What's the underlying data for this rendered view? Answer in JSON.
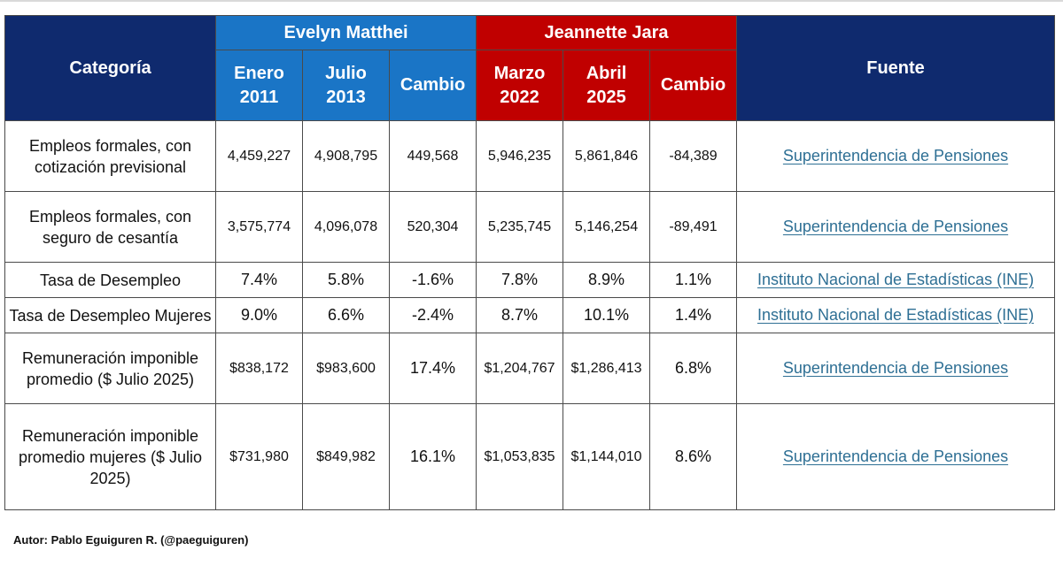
{
  "header": {
    "categoria": "Categoría",
    "fuente": "Fuente",
    "groups": [
      {
        "name": "Evelyn Matthei",
        "color": "#1a75c6",
        "cols": [
          {
            "line1": "Enero",
            "line2": "2011"
          },
          {
            "line1": "Julio",
            "line2": "2013"
          },
          {
            "line1": "Cambio",
            "line2": ""
          }
        ]
      },
      {
        "name": "Jeannette Jara",
        "color": "#c00000",
        "cols": [
          {
            "line1": "Marzo",
            "line2": "2022"
          },
          {
            "line1": "Abril",
            "line2": "2025"
          },
          {
            "line1": "Cambio",
            "line2": ""
          }
        ]
      }
    ],
    "header_color": "#0f2a6e"
  },
  "rows": [
    {
      "categoria": "Empleos formales, con cotización previsional",
      "values": [
        "4,459,227",
        "4,908,795",
        "449,568",
        "5,946,235",
        "5,861,846",
        "-84,389"
      ],
      "fuente": "Superintendencia de Pensiones"
    },
    {
      "categoria": "Empleos formales, con seguro de cesantía",
      "values": [
        "3,575,774",
        "4,096,078",
        "520,304",
        "5,235,745",
        "5,146,254",
        "-89,491"
      ],
      "fuente": "Superintendencia de Pensiones"
    },
    {
      "categoria": "Tasa de Desempleo",
      "values": [
        "7.4%",
        "5.8%",
        "-1.6%",
        "7.8%",
        "8.9%",
        "1.1%"
      ],
      "fuente": "Instituto Nacional de Estadísticas (INE)"
    },
    {
      "categoria": "Tasa de Desempleo Mujeres",
      "values": [
        "9.0%",
        "6.6%",
        "-2.4%",
        "8.7%",
        "10.1%",
        "1.4%"
      ],
      "fuente": "Instituto Nacional de Estadísticas (INE)"
    },
    {
      "categoria": "Remuneración imponible promedio ($ Julio 2025)",
      "values": [
        "$838,172",
        "$983,600",
        "17.4%",
        "$1,204,767",
        "$1,286,413",
        "6.8%"
      ],
      "fuente": "Superintendencia de Pensiones"
    },
    {
      "categoria": "Remuneración imponible promedio mujeres ($ Julio 2025)",
      "values": [
        "$731,980",
        "$849,982",
        "16.1%",
        "$1,053,835",
        "$1,144,010",
        "8.6%"
      ],
      "fuente": "Superintendencia de Pensiones"
    }
  ],
  "footer": "Autor: Pablo Eguiguren R. (@paeguiguren)"
}
